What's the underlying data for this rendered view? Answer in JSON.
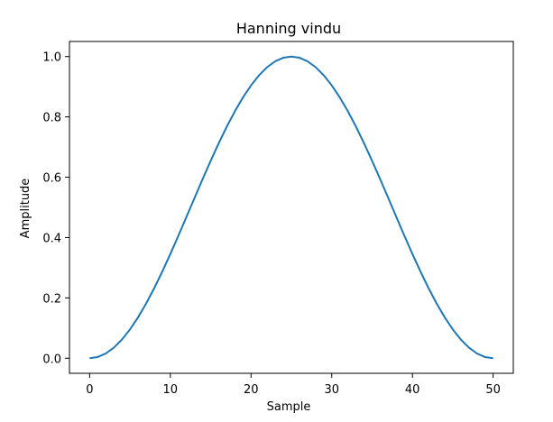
{
  "chart_data": {
    "type": "line",
    "title": "Hanning vindu",
    "xlabel": "Sample",
    "ylabel": "Amplitude",
    "xlim": [
      -2.5,
      52.5
    ],
    "ylim": [
      -0.05,
      1.05
    ],
    "xticks": [
      0,
      10,
      20,
      30,
      40,
      50
    ],
    "yticks": [
      0.0,
      0.2,
      0.4,
      0.6,
      0.8,
      1.0
    ],
    "xtick_labels": [
      "0",
      "10",
      "20",
      "30",
      "40",
      "50"
    ],
    "ytick_labels": [
      "0.0",
      "0.2",
      "0.4",
      "0.6",
      "0.8",
      "1.0"
    ],
    "grid": false,
    "series": [
      {
        "color": "#1f77b4",
        "x": [
          0,
          1,
          2,
          3,
          4,
          5,
          6,
          7,
          8,
          9,
          10,
          11,
          12,
          13,
          14,
          15,
          16,
          17,
          18,
          19,
          20,
          21,
          22,
          23,
          24,
          25,
          26,
          27,
          28,
          29,
          30,
          31,
          32,
          33,
          34,
          35,
          36,
          37,
          38,
          39,
          40,
          41,
          42,
          43,
          44,
          45,
          46,
          47,
          48,
          49,
          50
        ],
        "values": [
          0.0,
          0.0039,
          0.0157,
          0.0351,
          0.0618,
          0.0955,
          0.1355,
          0.1813,
          0.2321,
          0.2871,
          0.3455,
          0.4063,
          0.4686,
          0.5314,
          0.5937,
          0.6545,
          0.7129,
          0.7679,
          0.8187,
          0.8645,
          0.9045,
          0.9382,
          0.9649,
          0.9843,
          0.9961,
          1.0,
          0.9961,
          0.9843,
          0.9649,
          0.9382,
          0.9045,
          0.8645,
          0.8187,
          0.7679,
          0.7129,
          0.6545,
          0.5937,
          0.5314,
          0.4686,
          0.4063,
          0.3455,
          0.2871,
          0.2321,
          0.1813,
          0.1355,
          0.0955,
          0.0618,
          0.0351,
          0.0157,
          0.0039,
          0.0
        ]
      }
    ]
  }
}
